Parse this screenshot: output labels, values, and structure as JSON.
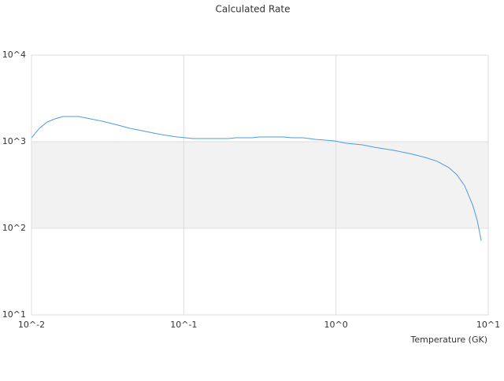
{
  "chart_data": {
    "type": "line",
    "title": "Calculated Rate",
    "x_label": "Temperature (GK)",
    "x": [
      0.01,
      0.01127,
      0.0127,
      0.0143,
      0.0161,
      0.0182,
      0.0204,
      0.023,
      0.0292,
      0.0371,
      0.0443,
      0.0562,
      0.0714,
      0.0906,
      0.115,
      0.196,
      0.221,
      0.281,
      0.316,
      0.452,
      0.509,
      0.609,
      0.728,
      0.981,
      1.17,
      1.49,
      1.78,
      2.4,
      3.04,
      3.86,
      4.62,
      5.52,
      6.22,
      7.0,
      7.89,
      8.47,
      8.99
    ],
    "values": [
      1110,
      1428,
      1690,
      1840,
      1955,
      1955,
      1955,
      1875,
      1722,
      1552,
      1428,
      1314,
      1208,
      1135,
      1087,
      1087,
      1110,
      1110,
      1135,
      1135,
      1110,
      1110,
      1065,
      1021,
      959,
      920,
      864,
      794,
      731,
      658,
      593,
      501,
      415,
      310,
      187,
      123,
      72
    ],
    "color": "#4c9be0",
    "x_log": true,
    "y_log": true,
    "alternate_bands": true,
    "grid": true,
    "xlim": [
      0.01,
      10
    ],
    "ylim": [
      10,
      10000
    ],
    "xticks": [
      {
        "value": 0.01,
        "label": "10^-2"
      },
      {
        "value": 0.1,
        "label": "10^-1"
      },
      {
        "value": 1,
        "label": "10^0"
      },
      {
        "value": 10,
        "label": "10^1"
      }
    ],
    "yticks": [
      {
        "value": 10,
        "label": "10^1"
      },
      {
        "value": 100,
        "label": "10^2"
      },
      {
        "value": 1000,
        "label": "10^3"
      },
      {
        "value": 10000,
        "label": "10^4"
      }
    ]
  }
}
